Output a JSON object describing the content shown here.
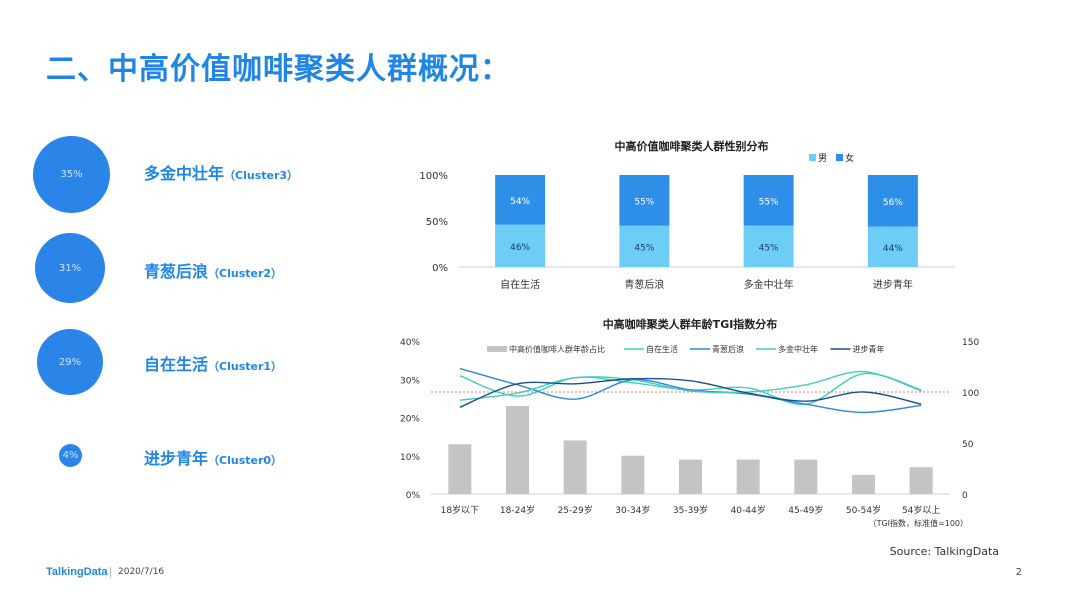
{
  "page": {
    "title": "二、中高价值咖啡聚类人群概况：",
    "source": "Source: TalkingData",
    "logo": "TalkingData",
    "date": "2020/7/16",
    "page_number": "2"
  },
  "segments": [
    {
      "pct": "35%",
      "name": "多金中壮年",
      "cluster": "（Cluster3）"
    },
    {
      "pct": "31%",
      "name": "青葱后浪",
      "cluster": "（Cluster2）"
    },
    {
      "pct": "29%",
      "name": "自在生活",
      "cluster": "（Cluster1）"
    },
    {
      "pct": "4%",
      "name": "进步青年",
      "cluster": "（Cluster0）"
    }
  ],
  "colors": {
    "accent": "#1f86e6",
    "bubble": "#2b84e8",
    "male": "#6dcdf5",
    "female": "#2e8fe8",
    "age_bar": "#c4c4c4",
    "ref_line": "#e05050"
  },
  "chart_data": [
    {
      "type": "bar",
      "title": "中高价值咖啡聚类人群性别分布",
      "stacked": true,
      "categories": [
        "自在生活",
        "青葱后浪",
        "多金中壮年",
        "进步青年"
      ],
      "series": [
        {
          "name": "男",
          "values": [
            46,
            45,
            45,
            44
          ],
          "labels": [
            "46%",
            "45%",
            "45%",
            "44%"
          ],
          "color": "#6dcdf5"
        },
        {
          "name": "女",
          "values": [
            54,
            55,
            55,
            56
          ],
          "labels": [
            "54%",
            "55%",
            "55%",
            "56%"
          ],
          "color": "#2e8fe8"
        }
      ],
      "ylim": [
        0,
        100
      ],
      "yticks": [
        "0%",
        "50%",
        "100%"
      ],
      "legend": "top-right",
      "grid": false
    },
    {
      "type": "bar",
      "title": "中高咖啡聚类人群年龄TGI指数分布",
      "categories": [
        "18岁以下",
        "18-24岁",
        "25-29岁",
        "30-34岁",
        "35-39岁",
        "40-44岁",
        "45-49岁",
        "50-54岁",
        "54岁以上"
      ],
      "bar_series": {
        "name": "中高价值咖啡人群年龄占比",
        "values": [
          13,
          23,
          14,
          10,
          9,
          9,
          9,
          5,
          7
        ],
        "color": "#c4c4c4"
      },
      "ylim": [
        0,
        40
      ],
      "yticks": [
        "0%",
        "10%",
        "20%",
        "30%",
        "40%"
      ],
      "y2lim": [
        0,
        150
      ],
      "y2ticks": [
        "0",
        "50",
        "100",
        "150"
      ],
      "line_series": [
        {
          "name": "自在生活",
          "values": [
            116,
            96,
            114,
            109,
            102,
            104,
            88,
            118,
            102
          ],
          "color": "#3bd3b5"
        },
        {
          "name": "青葱后浪",
          "values": [
            123,
            107,
            93,
            112,
            102,
            98,
            88,
            80,
            87
          ],
          "color": "#2e86de"
        },
        {
          "name": "多金中壮年",
          "values": [
            92,
            99,
            114,
            112,
            101,
            100,
            107,
            120,
            101
          ],
          "color": "#48c9c4"
        },
        {
          "name": "进步青年",
          "values": [
            85,
            108,
            108,
            113,
            111,
            99,
            91,
            100,
            88
          ],
          "color": "#1d4f8f"
        }
      ],
      "reference_line": 100,
      "note": "（TGI指数，标准值=100）",
      "legend": "top",
      "grid": false
    }
  ]
}
